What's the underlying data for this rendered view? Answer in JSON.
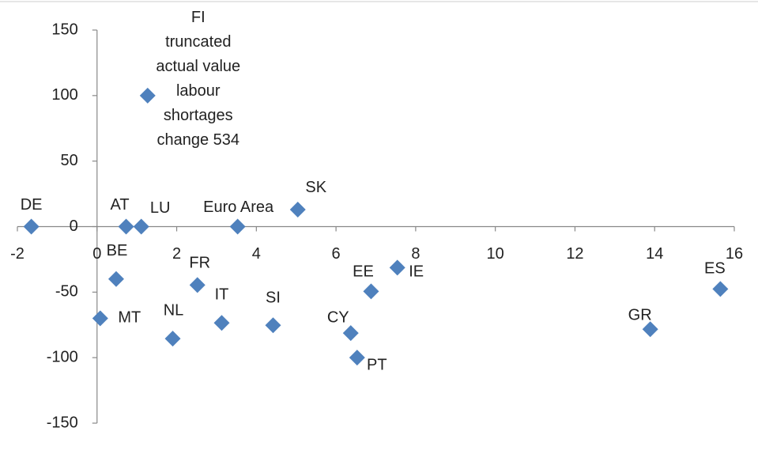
{
  "chart_data": {
    "type": "scatter",
    "labels": [
      "DE",
      "AT",
      "LU",
      "Euro Area",
      "SK",
      "FI",
      "BE",
      "MT",
      "NL",
      "FR",
      "IT",
      "SI",
      "CY",
      "PT",
      "EE",
      "IE",
      "GR",
      "ES"
    ],
    "x": [
      -1.65,
      0.73,
      1.11,
      3.53,
      5.04,
      1.27,
      0.48,
      0.08,
      1.9,
      2.52,
      3.13,
      4.42,
      6.37,
      6.53,
      6.88,
      7.54,
      13.89,
      15.65
    ],
    "values": [
      0,
      0,
      0,
      0,
      13,
      100,
      -40,
      -70,
      -85.5,
      -44.6,
      -73.5,
      -75.3,
      -81.3,
      -100,
      -49.4,
      -31.3,
      -78.3,
      -47.6
    ],
    "color": "#4f81bd",
    "annotation": [
      "truncated",
      "actual value",
      "labour",
      "shortages",
      "change 534"
    ],
    "xlim": [
      -2,
      16
    ],
    "xticks": [
      -2,
      0,
      2,
      4,
      6,
      8,
      10,
      12,
      14,
      16
    ],
    "ylim": [
      -150,
      150
    ],
    "yticks": [
      -150,
      -100,
      -50,
      0,
      50,
      100,
      150
    ],
    "grid": false
  }
}
